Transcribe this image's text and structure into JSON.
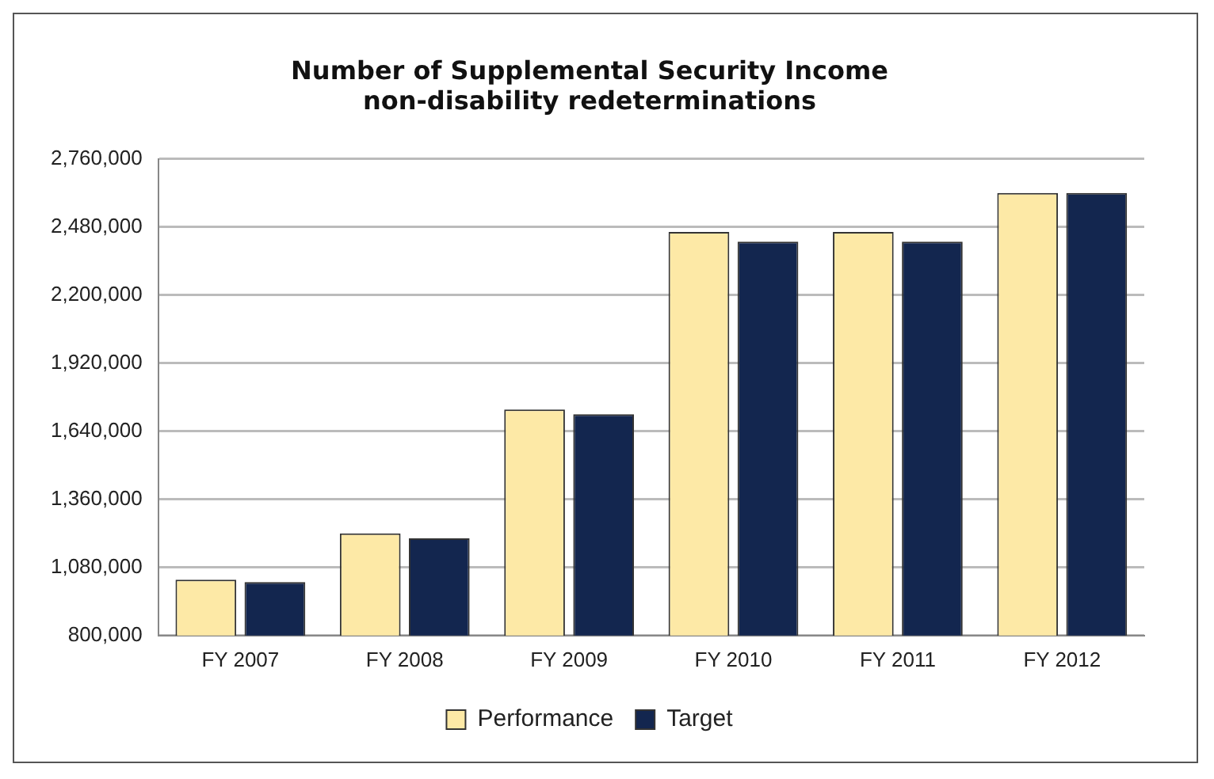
{
  "chart_data": {
    "type": "bar",
    "title": "Number of Supplemental Security Income\nnon-disability redeterminations",
    "categories": [
      "FY 2007",
      "FY 2008",
      "FY 2009",
      "FY 2010",
      "FY 2011",
      "FY 2012"
    ],
    "series": [
      {
        "name": "Performance",
        "color": "#fde9a6",
        "values": [
          1030000,
          1220000,
          1730000,
          2460000,
          2460000,
          2620000
        ]
      },
      {
        "name": "Target",
        "color": "#13264f",
        "values": [
          1020000,
          1200000,
          1710000,
          2420000,
          2420000,
          2620000
        ]
      }
    ],
    "ylim": [
      800000,
      2760000
    ],
    "yticks": [
      {
        "value": 800000,
        "label": "800,000"
      },
      {
        "value": 1080000,
        "label": "1,080,000"
      },
      {
        "value": 1360000,
        "label": "1,360,000"
      },
      {
        "value": 1640000,
        "label": "1,640,000"
      },
      {
        "value": 1920000,
        "label": "1,920,000"
      },
      {
        "value": 2200000,
        "label": "2,200,000"
      },
      {
        "value": 2480000,
        "label": "2,480,000"
      },
      {
        "value": 2760000,
        "label": "2,760,000"
      }
    ],
    "grid": "y",
    "legend": "bottom"
  }
}
